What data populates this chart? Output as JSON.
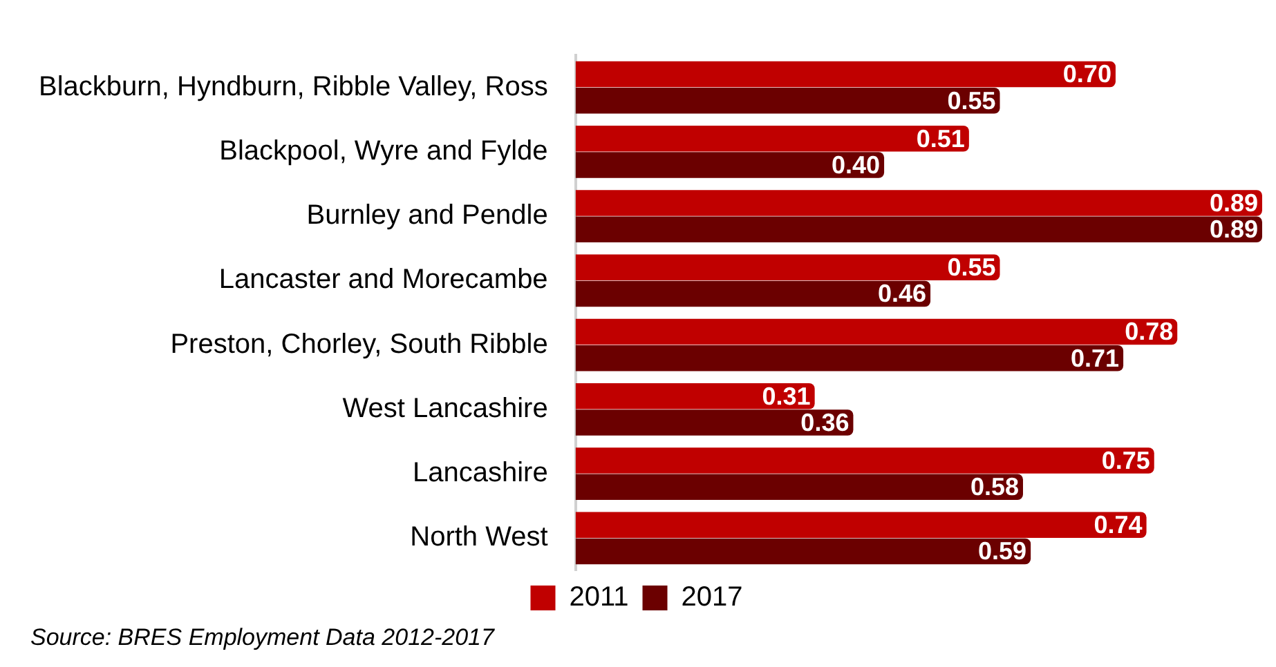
{
  "chart_data": {
    "type": "bar",
    "orientation": "horizontal",
    "categories": [
      "Blackburn, Hyndburn, Ribble Valley, Ross",
      "Blackpool, Wyre and Fylde",
      "Burnley and Pendle",
      "Lancaster and Morecambe",
      "Preston, Chorley, South Ribble",
      "West Lancashire",
      "Lancashire",
      "North West"
    ],
    "series": [
      {
        "name": "2011",
        "color": "#c00000",
        "values": [
          0.7,
          0.51,
          0.89,
          0.55,
          0.78,
          0.31,
          0.75,
          0.74
        ],
        "value_labels": [
          "0.70",
          "0.51",
          "0.89",
          "0.55",
          "0.78",
          "0.31",
          "0.75",
          "0.74"
        ]
      },
      {
        "name": "2017",
        "color": "#6b0000",
        "values": [
          0.55,
          0.4,
          0.89,
          0.46,
          0.71,
          0.36,
          0.58,
          0.59
        ],
        "value_labels": [
          "0.55",
          "0.40",
          "0.89",
          "0.46",
          "0.71",
          "0.36",
          "0.58",
          "0.59"
        ]
      }
    ],
    "legend": "bottom",
    "annotations": [
      "Source: BRES Employment Data 2012-2017"
    ]
  }
}
